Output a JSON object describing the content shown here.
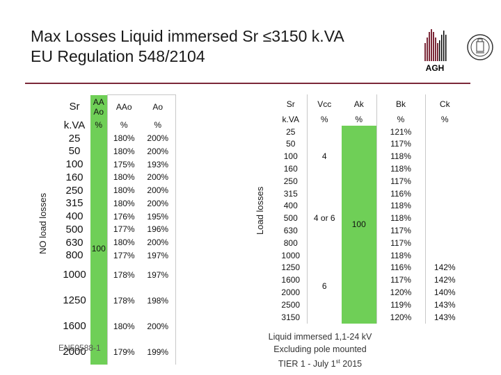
{
  "title": {
    "line1": "Max Losses Liquid immersed Sr ≤3150 k.VA",
    "line2": "EU Regulation 548/2104"
  },
  "logo": {
    "text": "AGH"
  },
  "no_load": {
    "axis_label": "NO load losses",
    "headers": {
      "sr": "Sr",
      "aaao": "AAAo",
      "aao": "AAo",
      "ao": "Ao"
    },
    "units": {
      "sr": "k.VA",
      "aaao": "%",
      "aao": "%",
      "ao": "%"
    },
    "rows": [
      {
        "sr": "25",
        "aao": "180%",
        "ao": "200%"
      },
      {
        "sr": "50",
        "aao": "180%",
        "ao": "200%"
      },
      {
        "sr": "100",
        "aao": "175%",
        "ao": "193%"
      },
      {
        "sr": "160",
        "aao": "180%",
        "ao": "200%"
      },
      {
        "sr": "250",
        "aao": "180%",
        "ao": "200%"
      },
      {
        "sr": "315",
        "aao": "180%",
        "ao": "200%"
      },
      {
        "sr": "400",
        "aao": "176%",
        "ao": "195%"
      },
      {
        "sr": "500",
        "aao": "177%",
        "ao": "196%"
      },
      {
        "sr": "630",
        "aao": "180%",
        "ao": "200%"
      },
      {
        "sr": "800",
        "aao": "177%",
        "ao": "197%"
      },
      {
        "sr": "1000",
        "aao": "178%",
        "ao": "197%"
      },
      {
        "sr": "1250",
        "aao": "178%",
        "ao": "198%"
      },
      {
        "sr": "1600",
        "aao": "180%",
        "ao": "200%"
      },
      {
        "sr": "2000",
        "aao": "179%",
        "ao": "199%"
      }
    ],
    "aaao_value": "100",
    "standard": "EN50588-1"
  },
  "load": {
    "axis_label": "Load losses",
    "headers": {
      "sr": "Sr",
      "vcc": "Vcc",
      "ak": "Ak",
      "bk": "Bk",
      "ck": "Ck"
    },
    "units": {
      "sr": "k.VA",
      "vcc": "%",
      "ak": "%",
      "bk": "%",
      "ck": "%"
    },
    "rows": [
      {
        "sr": "25",
        "bk": "121%",
        "ck": ""
      },
      {
        "sr": "50",
        "bk": "117%",
        "ck": ""
      },
      {
        "sr": "100",
        "bk": "118%",
        "ck": ""
      },
      {
        "sr": "160",
        "bk": "118%",
        "ck": ""
      },
      {
        "sr": "250",
        "bk": "117%",
        "ck": ""
      },
      {
        "sr": "315",
        "bk": "116%",
        "ck": ""
      },
      {
        "sr": "400",
        "bk": "118%",
        "ck": ""
      },
      {
        "sr": "500",
        "bk": "118%",
        "ck": ""
      },
      {
        "sr": "630",
        "bk": "117%",
        "ck": ""
      },
      {
        "sr": "800",
        "bk": "117%",
        "ck": ""
      },
      {
        "sr": "1000",
        "bk": "118%",
        "ck": ""
      },
      {
        "sr": "1250",
        "bk": "116%",
        "ck": "142%"
      },
      {
        "sr": "1600",
        "bk": "117%",
        "ck": "142%"
      },
      {
        "sr": "2000",
        "bk": "120%",
        "ck": "140%"
      },
      {
        "sr": "2500",
        "bk": "119%",
        "ck": "143%"
      },
      {
        "sr": "3150",
        "bk": "120%",
        "ck": "143%"
      }
    ],
    "vcc_groups": [
      "4",
      "4 or 6",
      "6"
    ],
    "ak_value": "100"
  },
  "note": {
    "line1": "Liquid immersed 1,1-24 kV",
    "line2": "Excluding pole mounted",
    "line3_prefix": "TIER 1  - July 1",
    "line3_sup": "st",
    "line3_suffix": " 2015"
  },
  "colors": {
    "accent": "#7b2838",
    "green": "#6fcf57"
  }
}
